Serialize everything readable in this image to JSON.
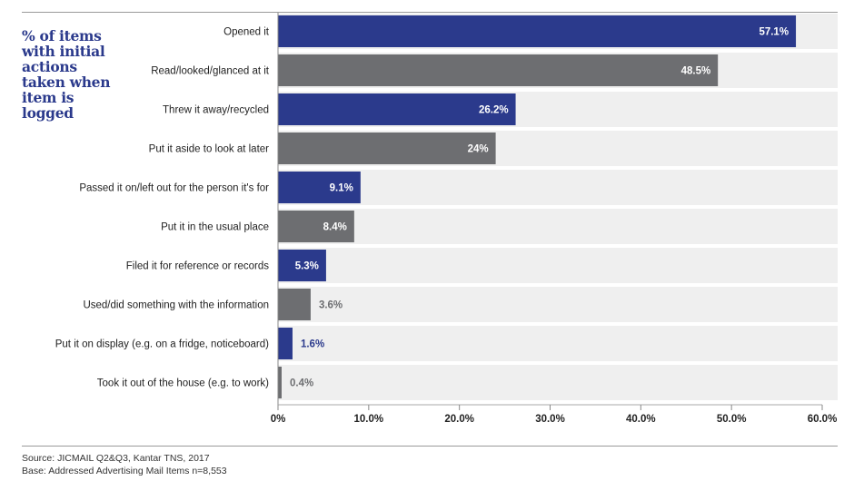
{
  "chart_data": {
    "type": "bar",
    "orientation": "horizontal",
    "title": "% of items with initial actions taken when item is logged",
    "categories": [
      "Opened it",
      "Read/looked/glanced at it",
      "Threw it away/recycled",
      "Put it aside to look at later",
      "Passed it on/left out for the person it's for",
      "Put it in the usual place",
      "Filed it for reference or records",
      "Used/did something with the information",
      "Put it on display (e.g. on a fridge, noticeboard)",
      "Took it out of the house (e.g. to work)"
    ],
    "values": [
      57.1,
      48.5,
      26.2,
      24,
      9.1,
      8.4,
      5.3,
      3.6,
      1.6,
      0.4
    ],
    "data_labels": [
      "57.1%",
      "48.5%",
      "26.2%",
      "24%",
      "9.1%",
      "8.4%",
      "5.3%",
      "3.6%",
      "1.6%",
      "0.4%"
    ],
    "xlim": [
      0,
      60
    ],
    "x_ticks": [
      "0%",
      "10.0%",
      "20.0%",
      "30.0%",
      "40.0%",
      "50.0%",
      "60.0%"
    ],
    "colors": {
      "blue": "#2b3a8c",
      "grey": "#6d6e71",
      "row_background": "#efefef"
    },
    "bar_colors": [
      "blue",
      "grey",
      "blue",
      "grey",
      "blue",
      "grey",
      "blue",
      "grey",
      "blue",
      "grey"
    ]
  },
  "footer": {
    "source": "Source: JICMAIL Q2&Q3, Kantar TNS, 2017",
    "base": "Base: Addressed Advertising Mail Items n=8,553"
  }
}
